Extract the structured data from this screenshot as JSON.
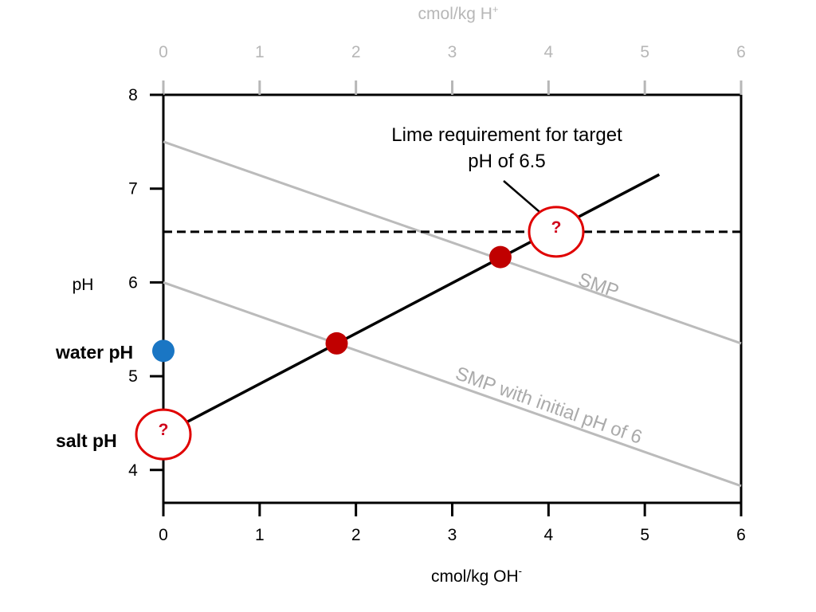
{
  "chart_data": {
    "type": "line",
    "x_axis_bottom": {
      "label_main": "cmol/kg OH",
      "label_sup": "-",
      "range": [
        0,
        6
      ],
      "ticks": [
        "0",
        "1",
        "2",
        "3",
        "4",
        "5",
        "6"
      ]
    },
    "x_axis_top": {
      "label_main": "cmol/kg H",
      "label_sup": "+",
      "range": [
        0,
        6
      ],
      "ticks": [
        "0",
        "1",
        "2",
        "3",
        "4",
        "5",
        "6"
      ]
    },
    "y_axis": {
      "label": "pH",
      "range": [
        3.65,
        8
      ],
      "ticks": [
        {
          "value": 4,
          "label": "4"
        },
        {
          "value": 5,
          "label": "5"
        },
        {
          "value": 6,
          "label": "6"
        },
        {
          "value": 7,
          "label": "7"
        },
        {
          "value": 8,
          "label": "8"
        }
      ]
    },
    "series": [
      {
        "name": "SMP",
        "x": [
          0,
          6
        ],
        "y": [
          7.5,
          5.35
        ]
      },
      {
        "name": "SMP with initial pH of 6",
        "x": [
          0,
          6
        ],
        "y": [
          6.0,
          3.83
        ]
      },
      {
        "x": [
          0,
          5.15
        ],
        "y": [
          4.38,
          7.15
        ]
      }
    ],
    "target_line": {
      "y": 6.54,
      "x_range": [
        0,
        6
      ]
    },
    "points": [
      {
        "x": 1.8,
        "y": 5.35,
        "color": "#c00000"
      },
      {
        "x": 3.5,
        "y": 6.27,
        "color": "#c00000"
      },
      {
        "x": 0,
        "y": 5.27,
        "color": "#1a76c4"
      }
    ],
    "unknown_markers": [
      {
        "x": 0,
        "y": 4.38,
        "label": "?"
      },
      {
        "x": 4.08,
        "y": 6.54,
        "label": "?"
      }
    ],
    "annotations": {
      "water_ph": "water pH",
      "salt_ph": "salt pH",
      "lime_line1": "Lime requirement for target",
      "lime_line2": "pH of 6.5",
      "smp_label": "SMP",
      "smp6_label": "SMP with initial pH of 6"
    },
    "colors": {
      "axis": "#000000",
      "top_axis": "#b7b7b7",
      "reference_lines": "#bbbbbb",
      "main_line": "#000000",
      "marker_ring": "#e00000",
      "marker_text": "#d0021b"
    }
  }
}
